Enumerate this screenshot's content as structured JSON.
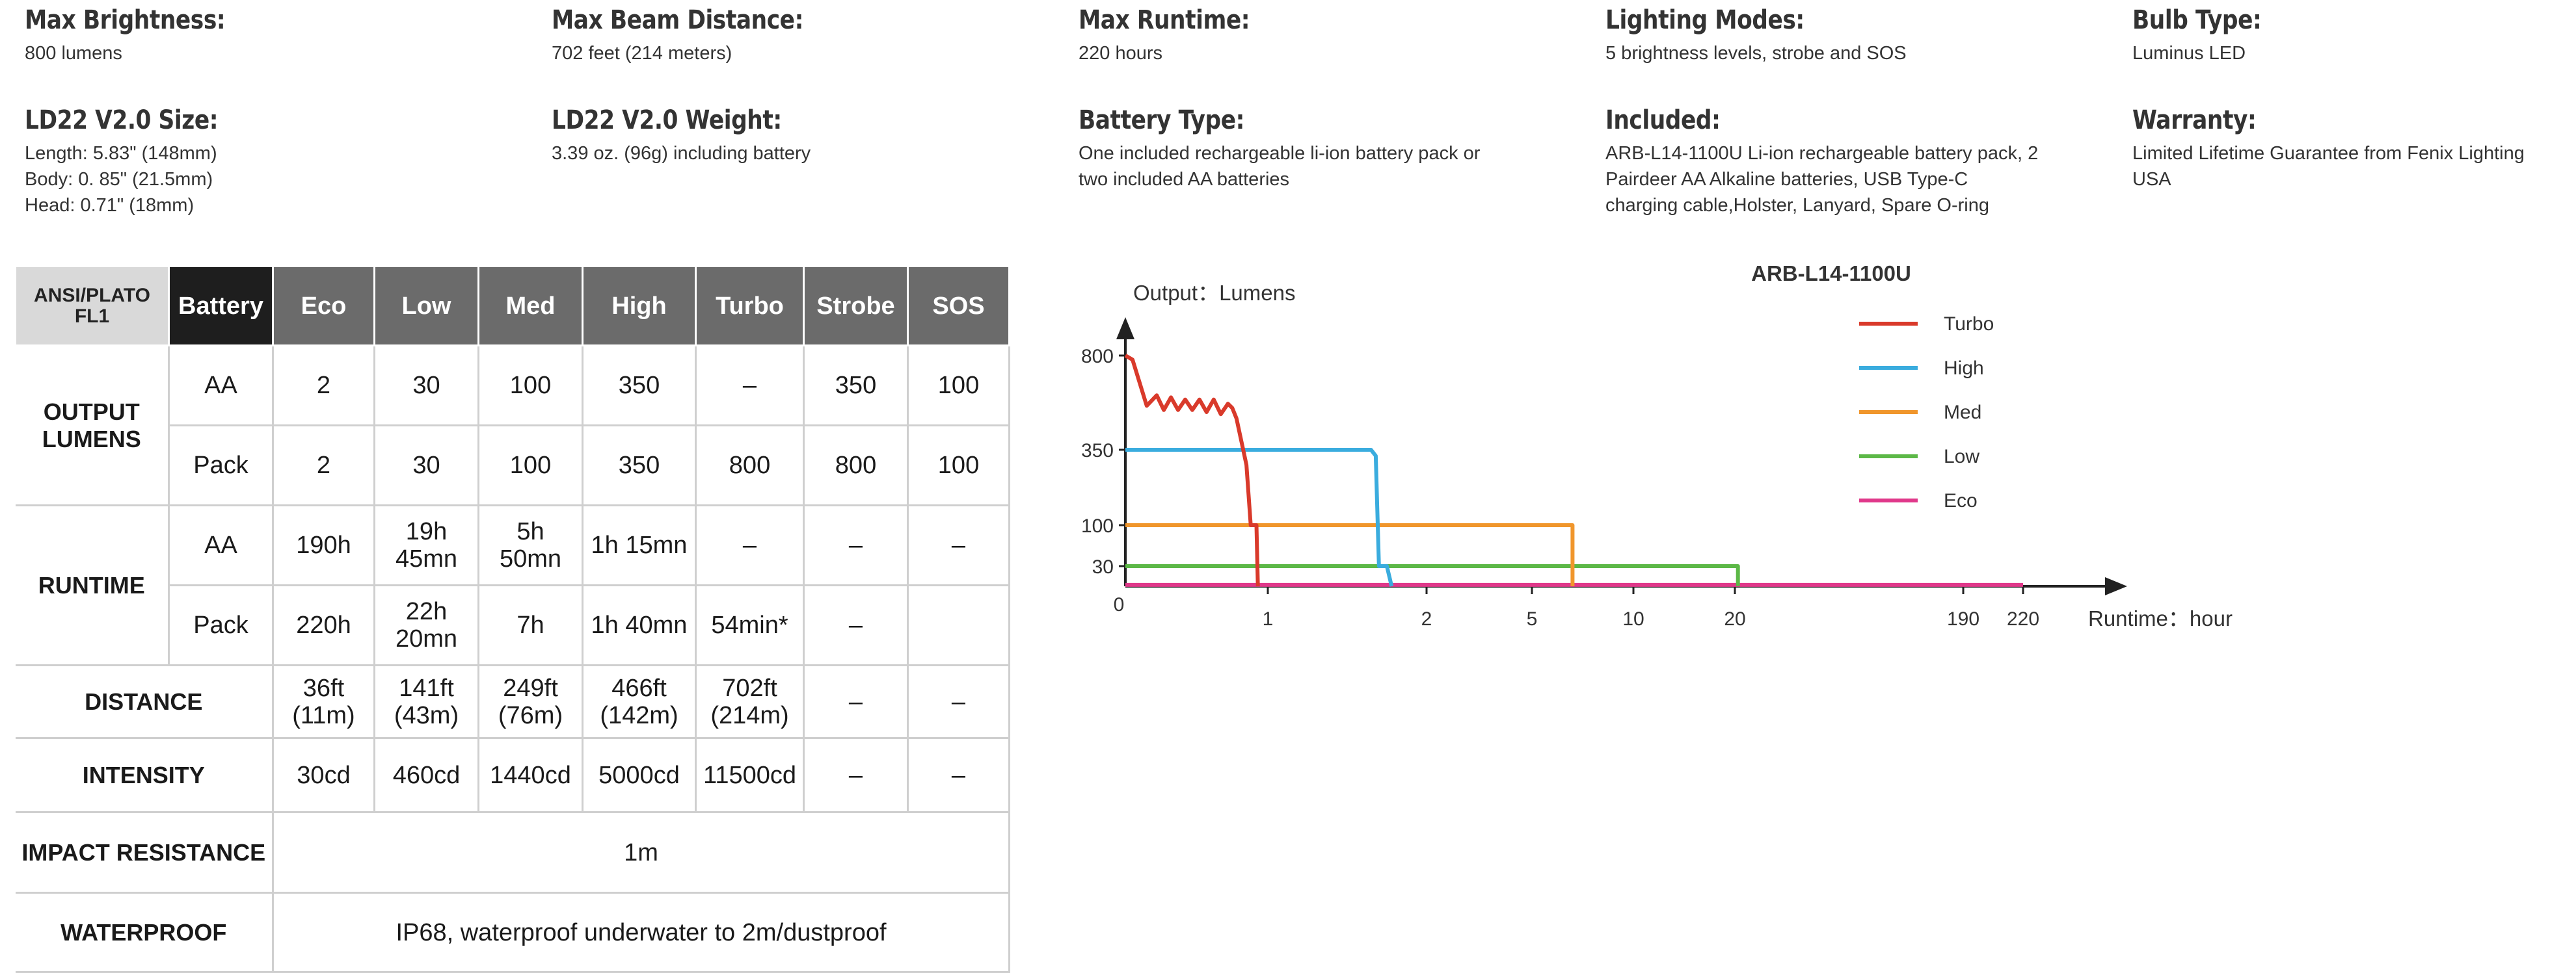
{
  "specs": [
    {
      "title": "Max Brightness:",
      "value": "800 lumens"
    },
    {
      "title": "Max Beam Distance:",
      "value": "702 feet (214 meters)"
    },
    {
      "title": "Max Runtime:",
      "value": "220 hours"
    },
    {
      "title": "Lighting Modes:",
      "value": "5 brightness levels, strobe and SOS"
    },
    {
      "title": "Bulb Type:",
      "value": "Luminus LED"
    },
    {
      "title": "LD22 V2.0 Size:",
      "value": "Length: 5.83\" (148mm)\nBody: 0. 85\" (21.5mm)\nHead: 0.71\" (18mm)"
    },
    {
      "title": "LD22 V2.0 Weight:",
      "value": "3.39 oz. (96g) including battery"
    },
    {
      "title": "Battery Type:",
      "value": "One included rechargeable li-ion battery pack or\ntwo included AA batteries"
    },
    {
      "title": "Included:",
      "value": "ARB-L14-1100U Li-ion rechargeable battery pack, 2\nPairdeer AA Alkaline batteries, USB Type-C\ncharging cable,Holster, Lanyard, Spare O-ring"
    },
    {
      "title": "Warranty:",
      "value": "Limited Lifetime Guarantee from Fenix Lighting\nUSA"
    }
  ],
  "table": {
    "header": {
      "standard": "ANSI/PLATO\nFL1",
      "battery": "Battery",
      "modes": [
        "Eco",
        "Low",
        "Med",
        "High",
        "Turbo",
        "Strobe",
        "SOS"
      ]
    },
    "output": {
      "label": "OUTPUT\nLUMENS",
      "rows": [
        {
          "battery": "AA",
          "values": [
            "2",
            "30",
            "100",
            "350",
            "–",
            "350",
            "100"
          ]
        },
        {
          "battery": "Pack",
          "values": [
            "2",
            "30",
            "100",
            "350",
            "800",
            "800",
            "100"
          ]
        }
      ]
    },
    "runtime": {
      "label": "RUNTIME",
      "rows": [
        {
          "battery": "AA",
          "values": [
            "190h",
            "19h\n45mn",
            "5h\n50mn",
            "1h 15mn",
            "–",
            "–",
            "–"
          ]
        },
        {
          "battery": "Pack",
          "values": [
            "220h",
            "22h\n20mn",
            "7h",
            "1h 40mn",
            "54min*",
            "–",
            ""
          ]
        }
      ]
    },
    "distance": {
      "label": "DISTANCE",
      "values": [
        "36ft\n(11m)",
        "141ft\n(43m)",
        "249ft\n(76m)",
        "466ft\n(142m)",
        "702ft\n(214m)",
        "–",
        "–"
      ]
    },
    "intensity": {
      "label": "INTENSITY",
      "values": [
        "30cd",
        "460cd",
        "1440cd",
        "5000cd",
        "11500cd",
        "–",
        "–"
      ]
    },
    "impact": {
      "label": "IMPACT RESISTANCE",
      "value": "1m"
    },
    "waterproof": {
      "label": "WATERPROOF",
      "value": "IP68, waterproof underwater to 2m/dustproof"
    }
  },
  "chart_data": {
    "type": "line",
    "title": "ARB-L14-1100U",
    "ylabel": "Output：Lumens",
    "xlabel": "Runtime：hour",
    "y_ticks": [
      800,
      350,
      100,
      30
    ],
    "x_ticks": [
      "0",
      "1",
      "2",
      "5",
      "10",
      "20",
      "190",
      "220"
    ],
    "legend_position": "top-right",
    "series": [
      {
        "name": "Turbo",
        "color": "#d93a2b",
        "points": [
          [
            0,
            800
          ],
          [
            0.05,
            780
          ],
          [
            0.15,
            560
          ],
          [
            0.22,
            610
          ],
          [
            0.27,
            540
          ],
          [
            0.32,
            600
          ],
          [
            0.37,
            540
          ],
          [
            0.42,
            590
          ],
          [
            0.47,
            540
          ],
          [
            0.52,
            590
          ],
          [
            0.57,
            530
          ],
          [
            0.62,
            590
          ],
          [
            0.67,
            520
          ],
          [
            0.72,
            570
          ],
          [
            0.75,
            550
          ],
          [
            0.78,
            500
          ],
          [
            0.85,
            300
          ],
          [
            0.88,
            100
          ],
          [
            0.92,
            100
          ],
          [
            0.93,
            0
          ]
        ]
      },
      {
        "name": "High",
        "color": "#3aacde",
        "points": [
          [
            0,
            350
          ],
          [
            1.65,
            350
          ],
          [
            1.68,
            330
          ],
          [
            1.7,
            30
          ],
          [
            1.75,
            30
          ],
          [
            1.78,
            0
          ]
        ]
      },
      {
        "name": "Med",
        "color": "#f0962c",
        "points": [
          [
            0,
            100
          ],
          [
            7,
            100
          ],
          [
            7,
            0
          ]
        ]
      },
      {
        "name": "Low",
        "color": "#5cb847",
        "points": [
          [
            0,
            30
          ],
          [
            22.3,
            30
          ],
          [
            22.3,
            0
          ]
        ]
      },
      {
        "name": "Eco",
        "color": "#e0388a",
        "points": [
          [
            0,
            2
          ],
          [
            220,
            2
          ]
        ]
      }
    ]
  }
}
